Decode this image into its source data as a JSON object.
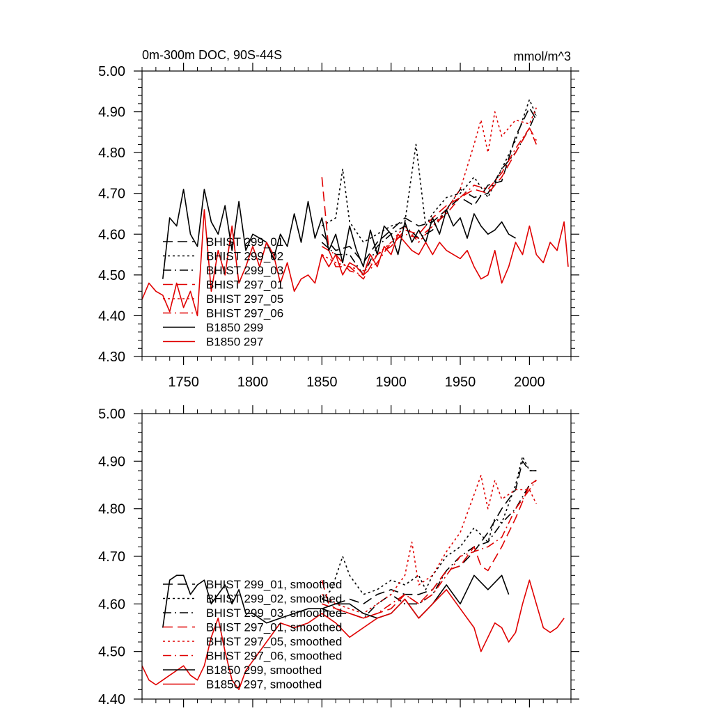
{
  "colors": {
    "black": "#000000",
    "red": "#e00000"
  },
  "chart_data": [
    {
      "type": "line",
      "title": "0m-300m DOC, 90S-44S",
      "units": "mmol/m^3",
      "xlabel": "",
      "ylabel": "",
      "xlim": [
        1720,
        2030
      ],
      "ylim": [
        4.3,
        5.0
      ],
      "x_ticks": [
        1750,
        1800,
        1850,
        1900,
        1950,
        2000
      ],
      "x_tick_labels": [
        "1750",
        "1800",
        "1850",
        "1900",
        "1950",
        "2000"
      ],
      "y_ticks": [
        4.3,
        4.4,
        4.5,
        4.6,
        4.7,
        4.8,
        4.9,
        5.0
      ],
      "y_tick_labels": [
        "4.30",
        "4.40",
        "4.50",
        "4.60",
        "4.70",
        "4.80",
        "4.90",
        "5.00"
      ],
      "legend_position": "bottom-left",
      "series": [
        {
          "name": "BHIST 299_01",
          "color": "black",
          "dash": "longdash",
          "x": [
            1850,
            1860,
            1870,
            1880,
            1890,
            1900,
            1910,
            1920,
            1930,
            1940,
            1950,
            1960,
            1970,
            1980,
            1990,
            2000,
            2005
          ],
          "y": [
            4.6,
            4.56,
            4.57,
            4.53,
            4.58,
            4.61,
            4.64,
            4.62,
            4.63,
            4.66,
            4.69,
            4.67,
            4.72,
            4.73,
            4.84,
            4.91,
            4.88
          ]
        },
        {
          "name": "BHIST 299_02",
          "color": "black",
          "dash": "dot",
          "x": [
            1850,
            1860,
            1865,
            1870,
            1880,
            1890,
            1900,
            1910,
            1918,
            1925,
            1930,
            1940,
            1950,
            1960,
            1970,
            1980,
            1990,
            2000,
            2005
          ],
          "y": [
            4.62,
            4.64,
            4.76,
            4.63,
            4.58,
            4.6,
            4.62,
            4.63,
            4.82,
            4.62,
            4.65,
            4.69,
            4.7,
            4.74,
            4.69,
            4.76,
            4.83,
            4.93,
            4.89
          ]
        },
        {
          "name": "BHIST 299_03",
          "color": "black",
          "dash": "dashdot",
          "x": [
            1850,
            1860,
            1870,
            1880,
            1890,
            1900,
            1910,
            1920,
            1930,
            1940,
            1950,
            1960,
            1970,
            1980,
            1990,
            2000,
            2005
          ],
          "y": [
            4.58,
            4.55,
            4.55,
            4.5,
            4.57,
            4.6,
            4.62,
            4.59,
            4.61,
            4.66,
            4.71,
            4.69,
            4.7,
            4.76,
            4.8,
            4.86,
            4.9
          ]
        },
        {
          "name": "BHIST 297_01",
          "color": "red",
          "dash": "longdash",
          "x": [
            1850,
            1855,
            1860,
            1870,
            1880,
            1890,
            1900,
            1910,
            1920,
            1930,
            1940,
            1950,
            1960,
            1970,
            1980,
            1990,
            2000,
            2005
          ],
          "y": [
            4.74,
            4.56,
            4.52,
            4.52,
            4.49,
            4.55,
            4.57,
            4.61,
            4.6,
            4.64,
            4.67,
            4.69,
            4.71,
            4.7,
            4.74,
            4.8,
            4.86,
            4.83
          ]
        },
        {
          "name": "BHIST 297_05",
          "color": "red",
          "dash": "dot",
          "x": [
            1850,
            1860,
            1870,
            1880,
            1890,
            1900,
            1910,
            1920,
            1930,
            1940,
            1950,
            1960,
            1965,
            1970,
            1975,
            1980,
            1990,
            2000,
            2005
          ],
          "y": [
            4.55,
            4.53,
            4.52,
            4.51,
            4.55,
            4.58,
            4.62,
            4.58,
            4.62,
            4.66,
            4.71,
            4.82,
            4.88,
            4.8,
            4.9,
            4.84,
            4.88,
            4.87,
            4.91
          ]
        },
        {
          "name": "BHIST 297_06",
          "color": "red",
          "dash": "dashdot",
          "x": [
            1850,
            1860,
            1870,
            1880,
            1890,
            1900,
            1910,
            1920,
            1930,
            1940,
            1950,
            1960,
            1970,
            1980,
            1990,
            2000,
            2005
          ],
          "y": [
            4.57,
            4.55,
            4.51,
            4.5,
            4.53,
            4.58,
            4.6,
            4.59,
            4.62,
            4.65,
            4.69,
            4.72,
            4.71,
            4.75,
            4.81,
            4.86,
            4.82
          ]
        },
        {
          "name": "B1850 299",
          "color": "black",
          "dash": "solid",
          "x": [
            1735,
            1740,
            1745,
            1750,
            1755,
            1760,
            1765,
            1770,
            1775,
            1780,
            1785,
            1790,
            1795,
            1800,
            1805,
            1810,
            1815,
            1820,
            1825,
            1830,
            1835,
            1840,
            1845,
            1850,
            1855,
            1860,
            1865,
            1870,
            1875,
            1880,
            1885,
            1890,
            1895,
            1900,
            1905,
            1910,
            1915,
            1920,
            1925,
            1930,
            1935,
            1940,
            1945,
            1950,
            1955,
            1960,
            1965,
            1970,
            1975,
            1980,
            1985,
            1990
          ],
          "y": [
            4.49,
            4.64,
            4.62,
            4.71,
            4.6,
            4.57,
            4.71,
            4.63,
            4.6,
            4.67,
            4.56,
            4.68,
            4.56,
            4.6,
            4.59,
            4.58,
            4.54,
            4.6,
            4.57,
            4.65,
            4.58,
            4.68,
            4.59,
            4.64,
            4.56,
            4.6,
            4.53,
            4.62,
            4.56,
            4.52,
            4.61,
            4.55,
            4.62,
            4.6,
            4.55,
            4.63,
            4.58,
            4.61,
            4.58,
            4.64,
            4.6,
            4.66,
            4.62,
            4.64,
            4.59,
            4.65,
            4.62,
            4.6,
            4.61,
            4.63,
            4.6,
            4.59
          ]
        },
        {
          "name": "B1850 297",
          "color": "red",
          "dash": "solid",
          "x": [
            1720,
            1725,
            1730,
            1735,
            1740,
            1745,
            1750,
            1755,
            1760,
            1765,
            1770,
            1775,
            1780,
            1785,
            1790,
            1795,
            1800,
            1805,
            1810,
            1815,
            1820,
            1825,
            1830,
            1835,
            1840,
            1845,
            1850,
            1855,
            1860,
            1865,
            1870,
            1875,
            1880,
            1885,
            1890,
            1895,
            1900,
            1905,
            1910,
            1915,
            1920,
            1925,
            1930,
            1935,
            1940,
            1945,
            1950,
            1955,
            1960,
            1965,
            1970,
            1975,
            1980,
            1985,
            1990,
            1995,
            2000,
            2005,
            2010,
            2015,
            2020,
            2025,
            2028
          ],
          "y": [
            4.44,
            4.48,
            4.46,
            4.45,
            4.41,
            4.48,
            4.42,
            4.46,
            4.4,
            4.66,
            4.46,
            4.56,
            4.5,
            4.62,
            4.48,
            4.52,
            4.57,
            4.52,
            4.58,
            4.55,
            4.48,
            4.53,
            4.46,
            4.49,
            4.5,
            4.48,
            4.55,
            4.52,
            4.55,
            4.5,
            4.53,
            4.52,
            4.5,
            4.55,
            4.52,
            4.57,
            4.55,
            4.6,
            4.58,
            4.56,
            4.55,
            4.58,
            4.55,
            4.58,
            4.56,
            4.55,
            4.54,
            4.56,
            4.52,
            4.49,
            4.5,
            4.56,
            4.48,
            4.52,
            4.58,
            4.55,
            4.62,
            4.55,
            4.53,
            4.58,
            4.56,
            4.63,
            4.52
          ]
        }
      ]
    },
    {
      "type": "line",
      "title": "",
      "xlabel": "",
      "ylabel": "",
      "xlim": [
        1720,
        2030
      ],
      "ylim": [
        4.4,
        5.0
      ],
      "x_ticks": [
        1750,
        1800,
        1850,
        1900,
        1950,
        2000
      ],
      "y_ticks": [
        4.4,
        4.5,
        4.6,
        4.7,
        4.8,
        4.9,
        5.0
      ],
      "y_tick_labels": [
        "4.40",
        "4.50",
        "4.60",
        "4.70",
        "4.80",
        "4.90",
        "5.00"
      ],
      "legend_position": "bottom-left",
      "series": [
        {
          "name": "BHIST 299_01, smoothed",
          "color": "black",
          "dash": "longdash",
          "x": [
            1850,
            1860,
            1870,
            1880,
            1890,
            1900,
            1910,
            1920,
            1930,
            1940,
            1950,
            1960,
            1970,
            1980,
            1990,
            1995,
            2000,
            2005
          ],
          "y": [
            4.61,
            4.6,
            4.61,
            4.6,
            4.62,
            4.63,
            4.62,
            4.62,
            4.63,
            4.67,
            4.68,
            4.71,
            4.75,
            4.8,
            4.84,
            4.9,
            4.88,
            4.88
          ]
        },
        {
          "name": "BHIST 299_02, smoothed",
          "color": "black",
          "dash": "dot",
          "x": [
            1850,
            1857,
            1865,
            1870,
            1880,
            1890,
            1900,
            1910,
            1920,
            1925,
            1930,
            1940,
            1950,
            1960,
            1970,
            1975,
            1980,
            1990,
            1995,
            2000,
            2005
          ],
          "y": [
            4.61,
            4.63,
            4.7,
            4.66,
            4.62,
            4.63,
            4.65,
            4.64,
            4.66,
            4.63,
            4.66,
            4.7,
            4.72,
            4.76,
            4.73,
            4.78,
            4.77,
            4.85,
            4.91,
            4.88,
            4.88
          ]
        },
        {
          "name": "BHIST 299_03, smoothed",
          "color": "black",
          "dash": "dashdot",
          "x": [
            1850,
            1860,
            1870,
            1880,
            1890,
            1900,
            1910,
            1920,
            1930,
            1940,
            1950,
            1960,
            1970,
            1980,
            1990,
            2000,
            2005
          ],
          "y": [
            4.59,
            4.58,
            4.58,
            4.57,
            4.6,
            4.62,
            4.6,
            4.6,
            4.62,
            4.67,
            4.7,
            4.72,
            4.73,
            4.77,
            4.8,
            4.85,
            4.86
          ]
        },
        {
          "name": "BHIST 297_01, smoothed",
          "color": "red",
          "dash": "longdash",
          "x": [
            1850,
            1855,
            1860,
            1870,
            1880,
            1890,
            1900,
            1910,
            1920,
            1930,
            1940,
            1950,
            1960,
            1965,
            1970,
            1980,
            1990,
            2000,
            2005
          ],
          "y": [
            4.65,
            4.6,
            4.59,
            4.58,
            4.57,
            4.58,
            4.59,
            4.62,
            4.6,
            4.63,
            4.67,
            4.68,
            4.72,
            4.68,
            4.67,
            4.72,
            4.78,
            4.85,
            4.86
          ]
        },
        {
          "name": "BHIST 297_05, smoothed",
          "color": "red",
          "dash": "dot",
          "x": [
            1850,
            1860,
            1870,
            1880,
            1890,
            1900,
            1910,
            1915,
            1920,
            1930,
            1940,
            1950,
            1960,
            1965,
            1970,
            1975,
            1980,
            1990,
            2000,
            2005
          ],
          "y": [
            4.62,
            4.6,
            4.59,
            4.58,
            4.6,
            4.62,
            4.66,
            4.73,
            4.64,
            4.66,
            4.71,
            4.75,
            4.83,
            4.87,
            4.8,
            4.86,
            4.82,
            4.84,
            4.84,
            4.81
          ]
        },
        {
          "name": "BHIST 297_06, smoothed",
          "color": "red",
          "dash": "dashdot",
          "x": [
            1850,
            1860,
            1870,
            1880,
            1890,
            1900,
            1910,
            1920,
            1930,
            1940,
            1950,
            1960,
            1970,
            1980,
            1990,
            2000,
            2005
          ],
          "y": [
            4.6,
            4.59,
            4.58,
            4.57,
            4.58,
            4.6,
            4.62,
            4.6,
            4.62,
            4.66,
            4.7,
            4.71,
            4.72,
            4.74,
            4.8,
            4.84,
            4.86
          ]
        },
        {
          "name": "B1850 299, smoothed",
          "color": "black",
          "dash": "solid",
          "x": [
            1735,
            1740,
            1745,
            1750,
            1755,
            1760,
            1765,
            1770,
            1775,
            1780,
            1785,
            1790,
            1795,
            1800,
            1810,
            1820,
            1830,
            1840,
            1850,
            1860,
            1870,
            1880,
            1890,
            1900,
            1910,
            1920,
            1930,
            1940,
            1950,
            1960,
            1970,
            1980,
            1985
          ],
          "y": [
            4.55,
            4.65,
            4.66,
            4.66,
            4.62,
            4.64,
            4.65,
            4.6,
            4.62,
            4.64,
            4.6,
            4.63,
            4.58,
            4.58,
            4.56,
            4.57,
            4.58,
            4.59,
            4.59,
            4.6,
            4.6,
            4.58,
            4.57,
            4.58,
            4.61,
            4.57,
            4.6,
            4.64,
            4.6,
            4.66,
            4.63,
            4.66,
            4.62
          ]
        },
        {
          "name": "B1850 297, smoothed",
          "color": "red",
          "dash": "solid",
          "x": [
            1720,
            1725,
            1730,
            1735,
            1740,
            1745,
            1750,
            1755,
            1760,
            1765,
            1770,
            1775,
            1780,
            1785,
            1790,
            1795,
            1800,
            1810,
            1820,
            1830,
            1840,
            1850,
            1860,
            1870,
            1880,
            1890,
            1900,
            1910,
            1920,
            1930,
            1940,
            1950,
            1960,
            1965,
            1970,
            1975,
            1980,
            1985,
            1990,
            1995,
            2000,
            2005,
            2010,
            2015,
            2020,
            2025
          ],
          "y": [
            4.47,
            4.44,
            4.43,
            4.44,
            4.45,
            4.46,
            4.47,
            4.45,
            4.44,
            4.47,
            4.53,
            4.57,
            4.5,
            4.44,
            4.42,
            4.46,
            4.48,
            4.52,
            4.56,
            4.55,
            4.56,
            4.58,
            4.56,
            4.53,
            4.55,
            4.57,
            4.58,
            4.61,
            4.57,
            4.6,
            4.63,
            4.59,
            4.55,
            4.5,
            4.53,
            4.56,
            4.55,
            4.52,
            4.54,
            4.6,
            4.65,
            4.6,
            4.55,
            4.54,
            4.55,
            4.57
          ]
        }
      ]
    }
  ]
}
